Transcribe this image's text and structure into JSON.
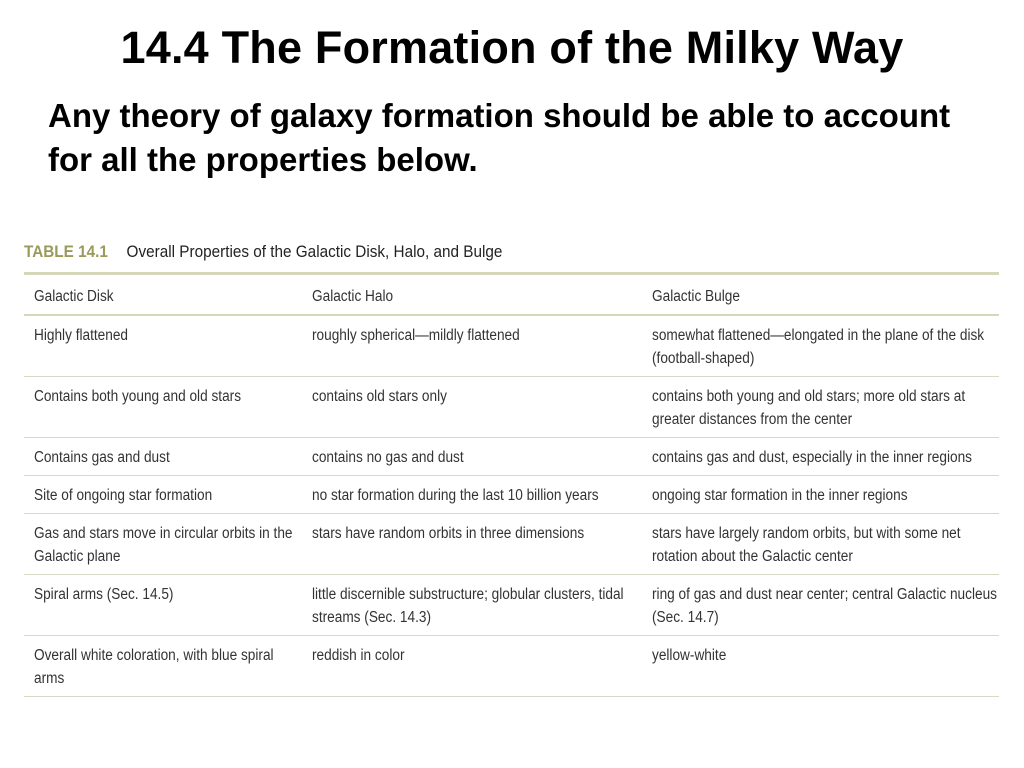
{
  "slide": {
    "title": "14.4 The Formation of the Milky Way",
    "subtitle": "Any theory of galaxy formation should be able to account for all the properties below."
  },
  "table": {
    "number": "TABLE 14.1",
    "caption": "Overall Properties of the Galactic Disk, Halo, and Bulge",
    "columns": [
      "Galactic Disk",
      "Galactic Halo",
      "Galactic Bulge"
    ],
    "rows": [
      [
        "Highly flattened",
        "roughly spherical—mildly flattened",
        "somewhat flattened—elongated in the plane of the disk (football-shaped)"
      ],
      [
        "Contains both young and old stars",
        "contains old stars only",
        "contains both young and old stars; more old stars at greater distances from the center"
      ],
      [
        "Contains gas and dust",
        "contains no gas and dust",
        "contains gas and dust, especially in the inner regions"
      ],
      [
        "Site of ongoing star formation",
        "no star formation during the last 10 billion years",
        "ongoing star formation in the inner regions"
      ],
      [
        "Gas and stars move in circular orbits in the Galactic plane",
        "stars have random orbits in three dimensions",
        "stars have largely random orbits, but with some net rotation about the Galactic center"
      ],
      [
        "Spiral arms (Sec. 14.5)",
        "little discernible substructure; globular clusters, tidal streams (Sec. 14.3)",
        "ring of gas and dust near center; central Galactic nucleus (Sec. 14.7)"
      ],
      [
        "Overall white coloration, with blue spiral arms",
        "reddish in color",
        "yellow-white"
      ]
    ]
  }
}
